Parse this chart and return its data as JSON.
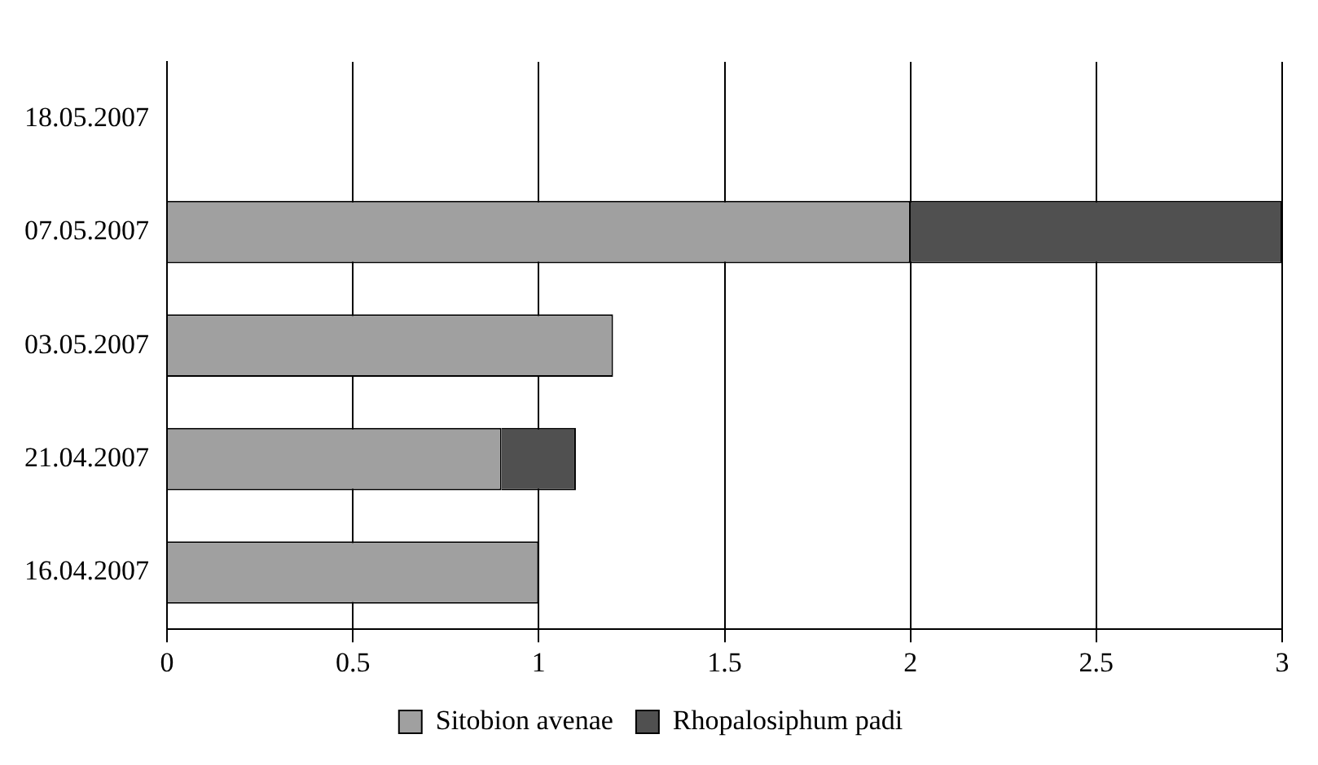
{
  "chart_data": {
    "type": "bar",
    "orientation": "horizontal",
    "stacked": true,
    "categories": [
      "18.05.2007",
      "07.05.2007",
      "03.05.2007",
      "21.04.2007",
      "16.04.2007"
    ],
    "series": [
      {
        "name": "Sitobion avenae",
        "color": "#a0a0a0",
        "values": [
          0,
          2,
          1.2,
          0.9,
          1.0
        ]
      },
      {
        "name": "Rhopalosiphum padi",
        "color": "#505050",
        "values": [
          0,
          1.0,
          0,
          0.2,
          0
        ]
      }
    ],
    "xlim": [
      0,
      3
    ],
    "xticks": [
      0,
      0.5,
      1,
      1.5,
      2,
      2.5,
      3
    ],
    "grid": "x",
    "legend": "bottom"
  }
}
